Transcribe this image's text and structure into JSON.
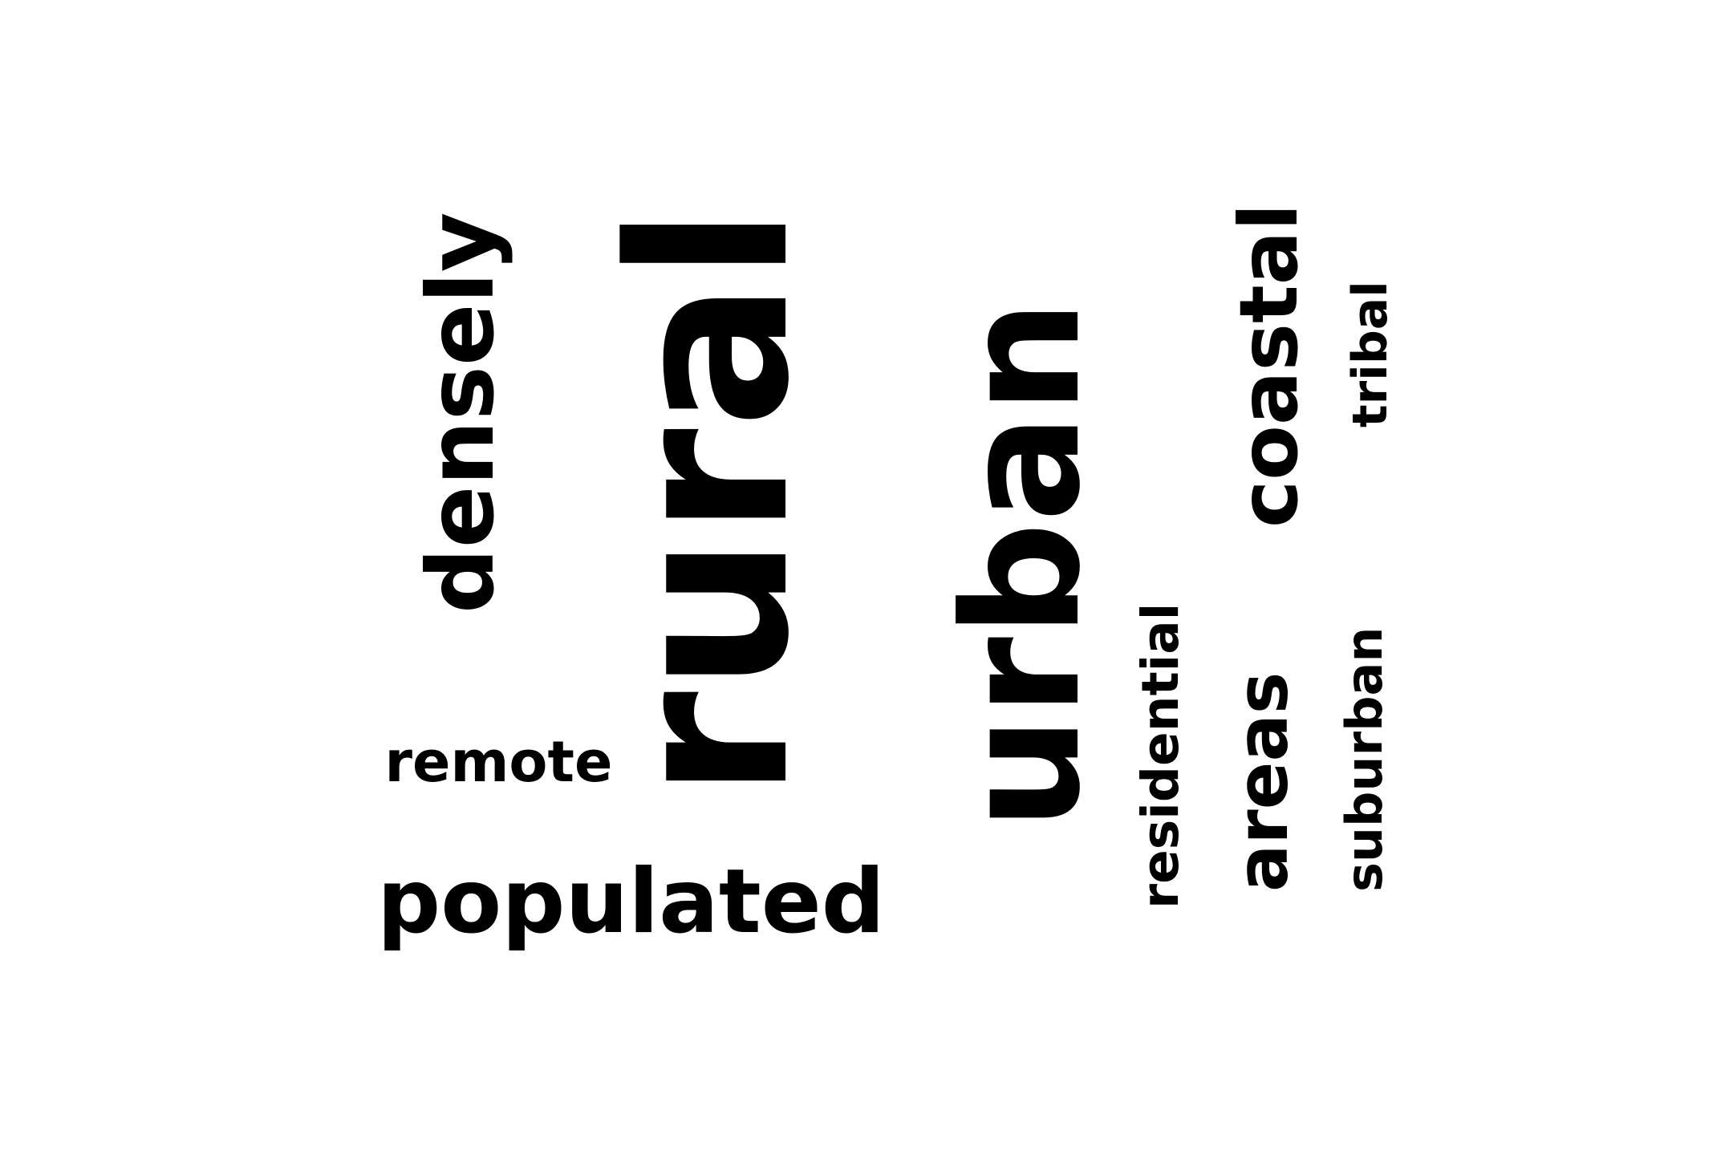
{
  "text_color": "#000000",
  "background_color": "#ffffff",
  "words": {
    "urban": "urban",
    "rural": "rural",
    "populated": "populated",
    "densely": "densely",
    "coastal": "coastal",
    "areas": "areas",
    "remote": "remote",
    "residential": "residential",
    "suburban": "suburban",
    "tribal": "tribal"
  }
}
